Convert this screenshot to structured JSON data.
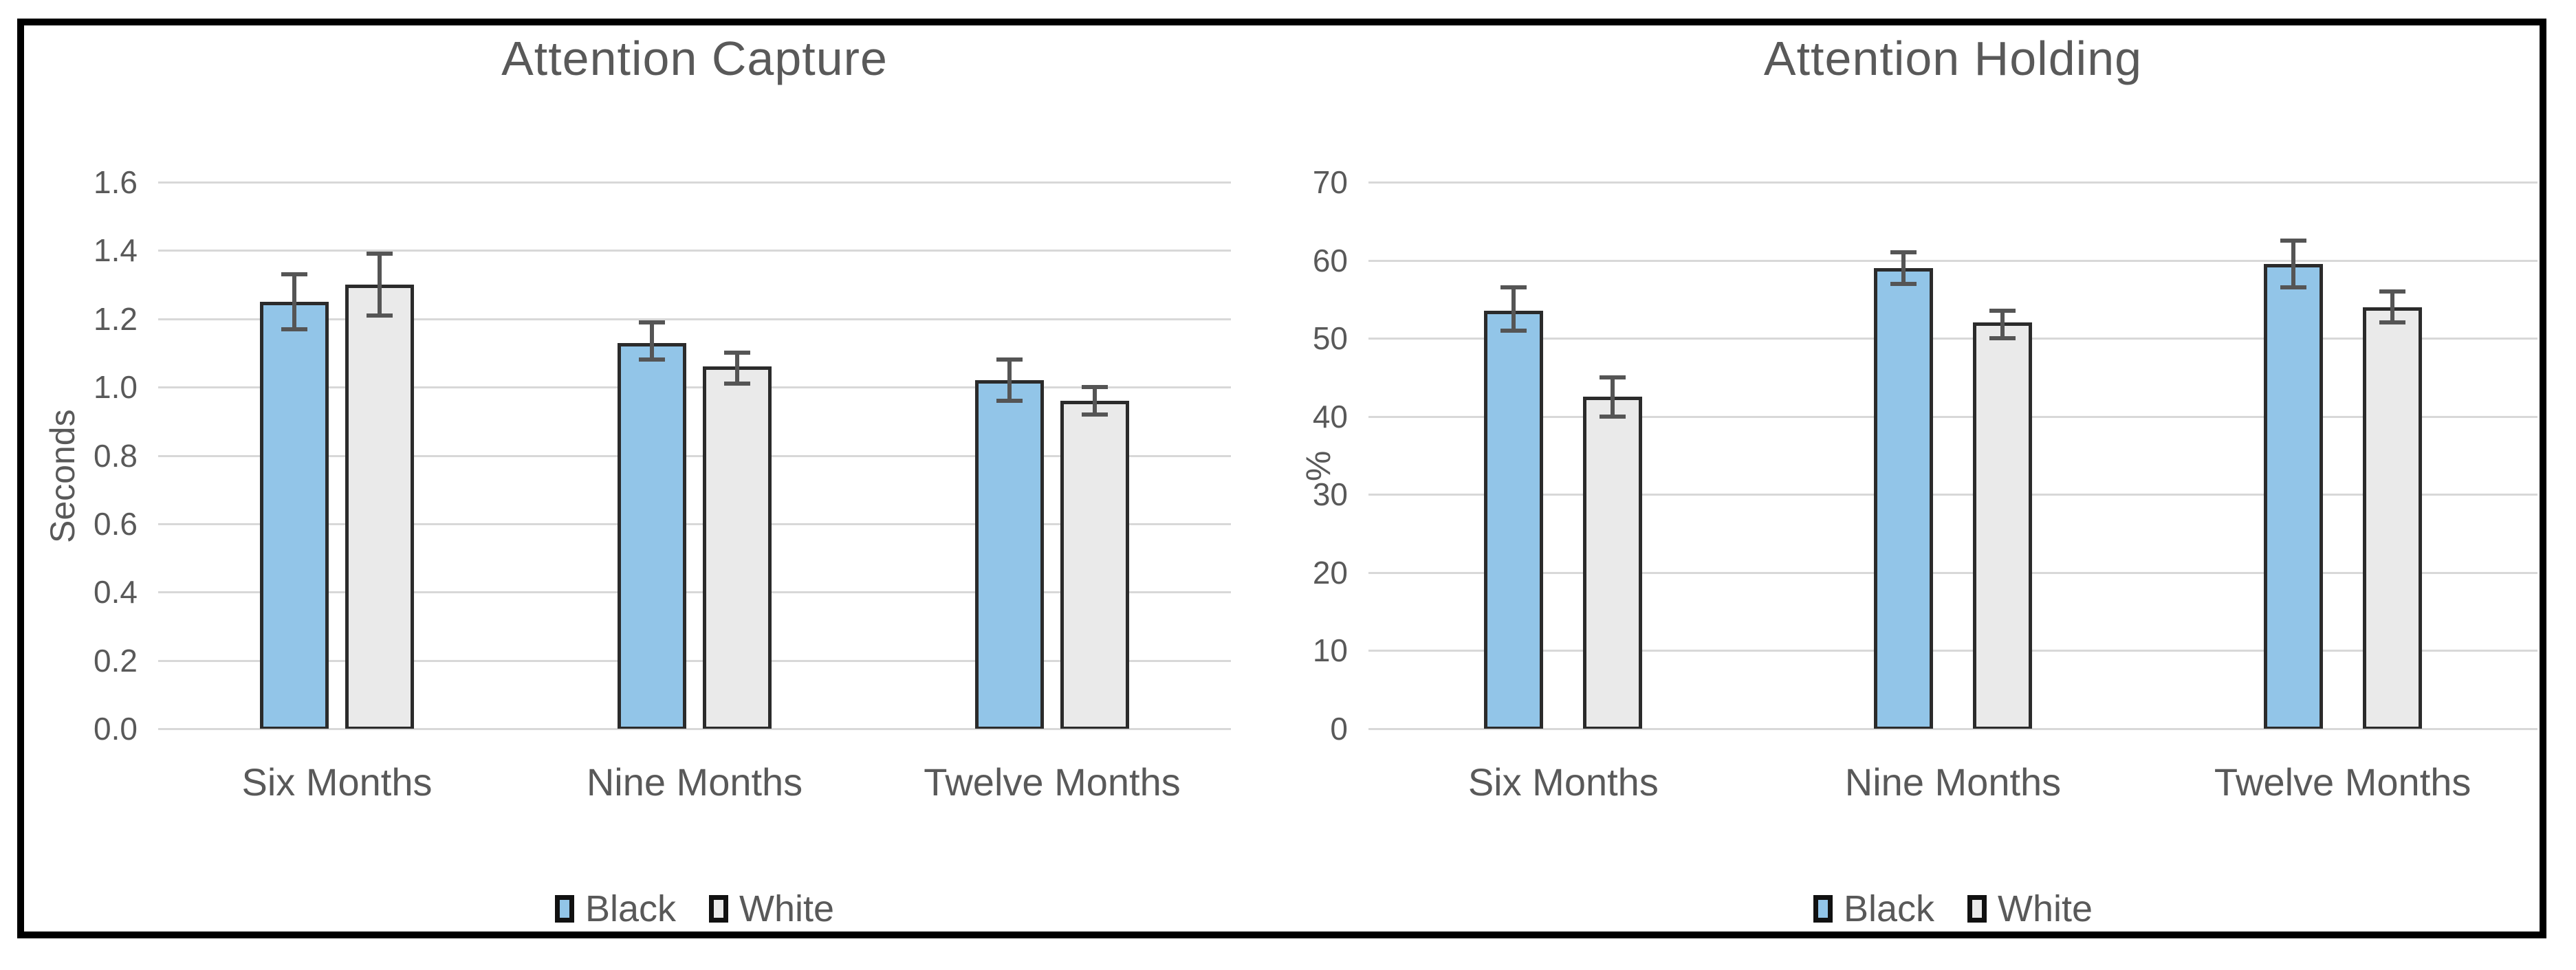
{
  "figure": {
    "background": "#ffffff",
    "frame_color": "#000000"
  },
  "colors": {
    "gridline": "#d8d8d8",
    "bar_border": "#2b2b2b",
    "error_bar": "#555555",
    "text": "#595959"
  },
  "chart_data": [
    {
      "type": "bar",
      "title": "Attention Capture",
      "y_axis_title": "Seconds",
      "ylim": [
        0,
        1.6
      ],
      "grid": true,
      "legend_position": "bottom",
      "y_ticks": [
        "1.6",
        "1.4",
        "1.2",
        "1.0",
        "0.8",
        "0.6",
        "0.4",
        "0.2",
        "0.0"
      ],
      "y_max": 1.6,
      "categories": [
        "Six Months",
        "Nine Months",
        "Twelve Months"
      ],
      "series": [
        {
          "name": "Black",
          "color": "#92c5e8",
          "values": [
            1.25,
            1.13,
            1.02
          ],
          "err_low": [
            1.17,
            1.08,
            0.96
          ],
          "err_high": [
            1.33,
            1.19,
            1.08
          ]
        },
        {
          "name": "White",
          "color": "#eaeaea",
          "values": [
            1.3,
            1.06,
            0.96
          ],
          "err_low": [
            1.21,
            1.01,
            0.92
          ],
          "err_high": [
            1.39,
            1.1,
            1.0
          ]
        }
      ],
      "legend": [
        "Black",
        "White"
      ]
    },
    {
      "type": "bar",
      "title": "Attention Holding",
      "y_axis_title": "%",
      "ylim": [
        0,
        70
      ],
      "grid": true,
      "legend_position": "bottom",
      "y_ticks": [
        "70",
        "60",
        "50",
        "40",
        "30",
        "20",
        "10",
        "0"
      ],
      "y_max": 70,
      "categories": [
        "Six Months",
        "Nine Months",
        "Twelve Months"
      ],
      "series": [
        {
          "name": "Black",
          "color": "#92c5e8",
          "values": [
            53.5,
            59.0,
            59.5
          ],
          "err_low": [
            51.0,
            57.0,
            56.5
          ],
          "err_high": [
            56.5,
            61.0,
            62.5
          ]
        },
        {
          "name": "White",
          "color": "#eaeaea",
          "values": [
            42.5,
            52.0,
            54.0
          ],
          "err_low": [
            40.0,
            50.0,
            52.0
          ],
          "err_high": [
            45.0,
            53.5,
            56.0
          ]
        }
      ],
      "legend": [
        "Black",
        "White"
      ]
    }
  ]
}
